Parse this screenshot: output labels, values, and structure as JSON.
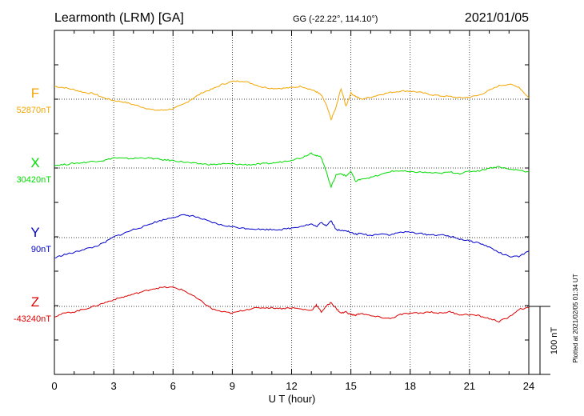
{
  "header": {
    "station": "Learmonth (LRM)  [GA]",
    "coords": "GG (-22.22°, 114.10°)",
    "date": "2021/01/05"
  },
  "footer": {
    "plotted": "Plotted at 2021/02/05 01:34 UT"
  },
  "chart_data": {
    "type": "line",
    "title": "",
    "xlabel": "U T (hour)",
    "ylabel": "",
    "xlim": [
      0,
      24
    ],
    "x_ticks": [
      "0",
      "3",
      "6",
      "9",
      "12",
      "15",
      "18",
      "21",
      "24"
    ],
    "grid": true,
    "scale_bar": {
      "label": "100 nT",
      "value_nT": 100
    },
    "series": [
      {
        "name": "F",
        "baseline_label": "52870nT",
        "baseline_nT": 52870,
        "color": "#f5a500",
        "x": [
          0,
          0.5,
          1,
          1.5,
          2,
          2.5,
          3,
          3.5,
          4,
          4.5,
          5,
          5.5,
          6,
          6.5,
          7,
          7.5,
          8,
          8.5,
          9,
          9.5,
          10,
          10.5,
          11,
          11.5,
          12,
          12.5,
          13,
          13.25,
          13.5,
          13.75,
          14,
          14.25,
          14.5,
          14.75,
          15,
          15.25,
          15.5,
          16,
          16.5,
          17,
          17.5,
          18,
          18.5,
          19,
          19.5,
          20,
          20.5,
          21,
          21.5,
          22,
          22.5,
          23,
          23.5,
          24
        ],
        "y": [
          19,
          17,
          14,
          10,
          8,
          2,
          -2,
          -4,
          -8,
          -12,
          -16,
          -16,
          -14,
          -8,
          1,
          10,
          15,
          22,
          26,
          27,
          23,
          18,
          16,
          16,
          17,
          19,
          14,
          11,
          6,
          -8,
          -30,
          -12,
          16,
          -10,
          9,
          4,
          0,
          3,
          7,
          10,
          12,
          12,
          10,
          7,
          5,
          4,
          2,
          3,
          6,
          13,
          20,
          22,
          18,
          2
        ]
      },
      {
        "name": "X",
        "baseline_label": "30420nT",
        "baseline_nT": 30420,
        "color": "#00dd00",
        "x": [
          0,
          0.5,
          1,
          1.5,
          2,
          2.5,
          3,
          3.5,
          4,
          4.5,
          5,
          5.5,
          6,
          6.5,
          7,
          7.5,
          8,
          8.5,
          9,
          9.5,
          10,
          10.5,
          11,
          11.5,
          12,
          12.5,
          13,
          13.25,
          13.5,
          13.75,
          14,
          14.25,
          14.5,
          14.75,
          15,
          15.25,
          15.5,
          16,
          16.5,
          17,
          17.5,
          18,
          18.5,
          19,
          19.5,
          20,
          20.5,
          21,
          21.5,
          22,
          22.5,
          23,
          23.5,
          24
        ],
        "y": [
          4,
          5,
          7,
          8,
          10,
          11,
          15,
          14,
          14,
          15,
          14,
          12,
          11,
          9,
          7,
          6,
          5,
          6,
          6,
          5,
          5,
          6,
          7,
          9,
          12,
          15,
          22,
          18,
          16,
          -5,
          -28,
          -10,
          -8,
          -12,
          -5,
          -20,
          -16,
          -14,
          -10,
          -5,
          -4,
          -6,
          -6,
          -7,
          -8,
          -6,
          -8,
          -5,
          -4,
          0,
          2,
          -2,
          -3,
          -6
        ]
      },
      {
        "name": "Y",
        "baseline_label": "90nT",
        "baseline_nT": 90,
        "color": "#0000cc",
        "x": [
          0,
          0.5,
          1,
          1.5,
          2,
          2.5,
          3,
          3.5,
          4,
          4.5,
          5,
          5.5,
          6,
          6.5,
          7,
          7.5,
          8,
          8.5,
          9,
          9.5,
          10,
          10.5,
          11,
          11.5,
          12,
          12.5,
          13,
          13.25,
          13.5,
          13.75,
          14,
          14.25,
          14.5,
          14.75,
          15,
          15.25,
          15.5,
          16,
          16.5,
          17,
          17.5,
          18,
          18.5,
          19,
          19.5,
          20,
          20.5,
          21,
          21.5,
          22,
          22.5,
          23,
          23.5,
          24
        ],
        "y": [
          -30,
          -25,
          -22,
          -17,
          -14,
          -8,
          1,
          6,
          12,
          16,
          22,
          26,
          30,
          33,
          32,
          27,
          22,
          18,
          16,
          14,
          13,
          12,
          12,
          12,
          14,
          17,
          20,
          16,
          22,
          18,
          25,
          12,
          10,
          11,
          7,
          5,
          6,
          3,
          6,
          4,
          8,
          8,
          6,
          4,
          4,
          2,
          -2,
          -5,
          -8,
          -14,
          -22,
          -28,
          -28,
          -20
        ]
      },
      {
        "name": "Z",
        "baseline_label": "-43240nT",
        "baseline_nT": -43240,
        "color": "#dd0000",
        "x": [
          0,
          0.5,
          1,
          1.5,
          2,
          2.5,
          3,
          3.5,
          4,
          4.5,
          5,
          5.5,
          6,
          6.5,
          7,
          7.5,
          8,
          8.5,
          9,
          9.5,
          10,
          10.5,
          11,
          11.5,
          12,
          12.5,
          13,
          13.25,
          13.5,
          13.75,
          14,
          14.25,
          14.5,
          14.75,
          15,
          15.25,
          15.5,
          16,
          16.5,
          17,
          17.5,
          18,
          18.5,
          19,
          19.5,
          20,
          20.5,
          21,
          21.5,
          22,
          22.5,
          23,
          23.5,
          24
        ],
        "y": [
          -15,
          -10,
          -8,
          -4,
          0,
          5,
          10,
          14,
          18,
          22,
          26,
          28,
          28,
          24,
          16,
          6,
          -4,
          -8,
          -10,
          -6,
          -3,
          -2,
          -2,
          -3,
          -2,
          -4,
          -6,
          2,
          -8,
          0,
          6,
          -3,
          -10,
          -8,
          -12,
          -13,
          -10,
          -14,
          -16,
          -18,
          -12,
          -10,
          -10,
          -8,
          -10,
          -8,
          -12,
          -12,
          -14,
          -18,
          -22,
          -16,
          -4,
          -2
        ]
      }
    ]
  }
}
